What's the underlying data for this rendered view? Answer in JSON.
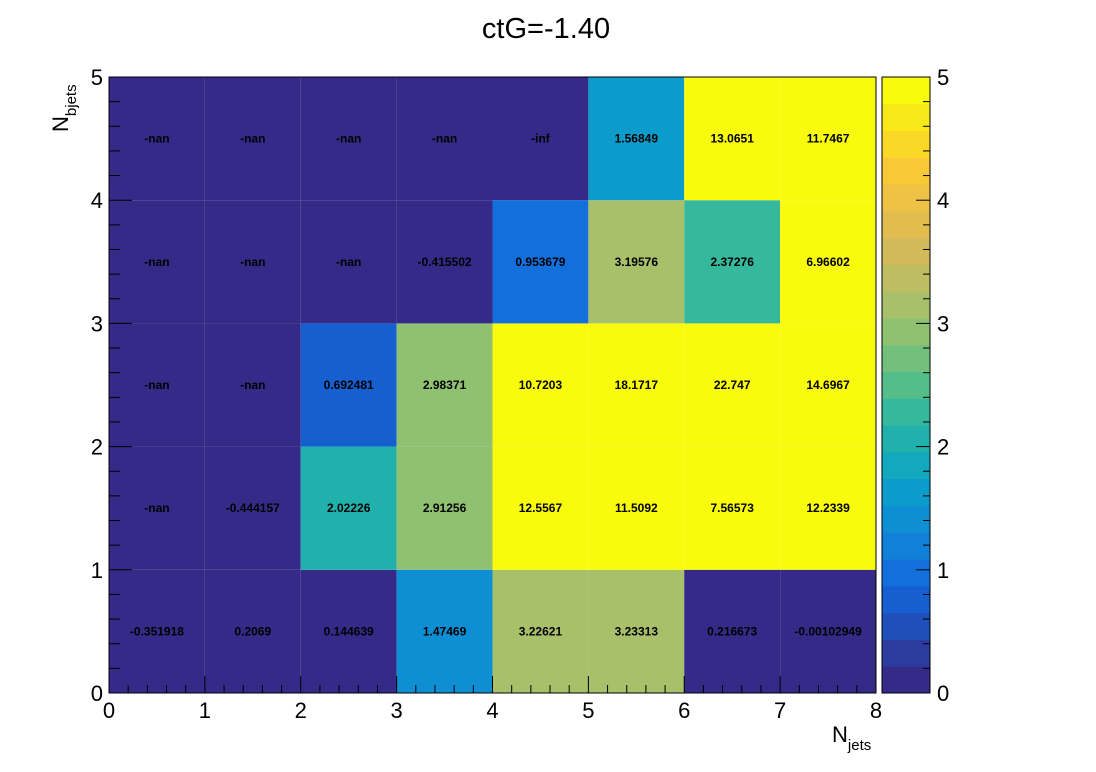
{
  "chart_data": {
    "type": "heatmap",
    "title": "ctG=-1.40",
    "xlabel": "N",
    "xlabel_sub": "jets",
    "ylabel": "N",
    "ylabel_sub": "bjets",
    "x_edges": [
      0,
      1,
      2,
      3,
      4,
      5,
      6,
      7,
      8
    ],
    "y_edges": [
      0,
      1,
      2,
      3,
      4,
      5
    ],
    "xlim": [
      0,
      8
    ],
    "ylim": [
      0,
      5
    ],
    "x_ticks": [
      "0",
      "1",
      "2",
      "3",
      "4",
      "5",
      "6",
      "7",
      "8"
    ],
    "y_ticks": [
      "0",
      "1",
      "2",
      "3",
      "4",
      "5"
    ],
    "zlim": [
      0,
      5
    ],
    "z_ticks": [
      "0",
      "1",
      "2",
      "3",
      "4",
      "5"
    ],
    "palette": "parula-like",
    "grid": false,
    "rows": [
      {
        "y_bin": 0,
        "values": [
          -0.351918,
          0.2069,
          0.144639,
          1.47469,
          3.22621,
          3.23313,
          0.216673,
          -0.00102949
        ],
        "labels": [
          "-0.351918",
          "0.2069",
          "0.144639",
          "1.47469",
          "3.22621",
          "3.23313",
          "0.216673",
          "-0.00102949"
        ]
      },
      {
        "y_bin": 1,
        "values": [
          null,
          -0.444157,
          2.02226,
          2.91256,
          12.5567,
          11.5092,
          7.56573,
          12.2339
        ],
        "labels": [
          "-nan",
          "-0.444157",
          "2.02226",
          "2.91256",
          "12.5567",
          "11.5092",
          "7.56573",
          "12.2339"
        ]
      },
      {
        "y_bin": 2,
        "values": [
          null,
          null,
          0.692481,
          2.98371,
          10.7203,
          18.1717,
          22.747,
          14.6967
        ],
        "labels": [
          "-nan",
          "-nan",
          "0.692481",
          "2.98371",
          "10.7203",
          "18.1717",
          "22.747",
          "14.6967"
        ]
      },
      {
        "y_bin": 3,
        "values": [
          null,
          null,
          null,
          -0.415502,
          0.953679,
          3.19576,
          2.37276,
          6.96602
        ],
        "labels": [
          "-nan",
          "-nan",
          "-nan",
          "-0.415502",
          "0.953679",
          "3.19576",
          "2.37276",
          "6.96602"
        ]
      },
      {
        "y_bin": 4,
        "values": [
          null,
          null,
          null,
          null,
          null,
          1.56849,
          13.0651,
          11.7467
        ],
        "labels": [
          "-nan",
          "-nan",
          "-nan",
          "-nan",
          "-inf",
          "1.56849",
          "13.0651",
          "11.7467"
        ]
      }
    ]
  }
}
